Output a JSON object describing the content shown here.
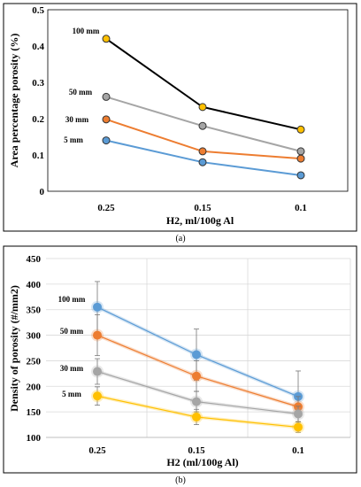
{
  "chart_data": [
    {
      "panel_label": "(a)",
      "type": "line",
      "categories": [
        "0.25",
        "0.15",
        "0.1"
      ],
      "xlabel": "H2, ml/100g Al",
      "ylabel": "Area percentage porosity (%)",
      "ylim": [
        0,
        0.5
      ],
      "yticks": [
        "0",
        "0.1",
        "0.2",
        "0.3",
        "0.4",
        "0.5"
      ],
      "grid": false,
      "error_bars": false,
      "series": [
        {
          "name": "100 mm",
          "values": [
            0.42,
            0.232,
            0.17
          ],
          "line_color": "#000000",
          "marker_color": "#ffc000"
        },
        {
          "name": "50 mm",
          "values": [
            0.26,
            0.18,
            0.11
          ],
          "line_color": "#a5a5a5",
          "marker_color": "#a5a5a5"
        },
        {
          "name": "30 mm",
          "values": [
            0.198,
            0.11,
            0.09
          ],
          "line_color": "#ed7d31",
          "marker_color": "#ed7d31"
        },
        {
          "name": "5 mm",
          "values": [
            0.14,
            0.08,
            0.044
          ],
          "line_color": "#5b9bd5",
          "marker_color": "#5b9bd5"
        }
      ]
    },
    {
      "panel_label": "(b)",
      "type": "line",
      "categories": [
        "0.25",
        "0.15",
        "0.1"
      ],
      "xlabel": "H2 (ml/100g Al)",
      "ylabel": "Density of porosity (#/mm2)",
      "ylim": [
        100,
        450
      ],
      "yticks": [
        "100",
        "150",
        "200",
        "250",
        "300",
        "350",
        "400",
        "450"
      ],
      "grid": true,
      "error_bars": true,
      "series": [
        {
          "name": "100 mm",
          "values": [
            355,
            262,
            180
          ],
          "errors": [
            50,
            50,
            50
          ],
          "line_color": "#5b9bd5",
          "marker_color": "#5b9bd5"
        },
        {
          "name": "50 mm",
          "values": [
            300,
            220,
            160
          ],
          "errors": [
            40,
            30,
            20
          ],
          "line_color": "#ed7d31",
          "marker_color": "#ed7d31"
        },
        {
          "name": "30 mm",
          "values": [
            229,
            170,
            146
          ],
          "errors": [
            25,
            20,
            15
          ],
          "line_color": "#a5a5a5",
          "marker_color": "#a5a5a5"
        },
        {
          "name": "5 mm",
          "values": [
            181,
            140,
            120
          ],
          "errors": [
            18,
            15,
            10
          ],
          "line_color": "#ffc000",
          "marker_color": "#ffc000"
        }
      ]
    }
  ]
}
